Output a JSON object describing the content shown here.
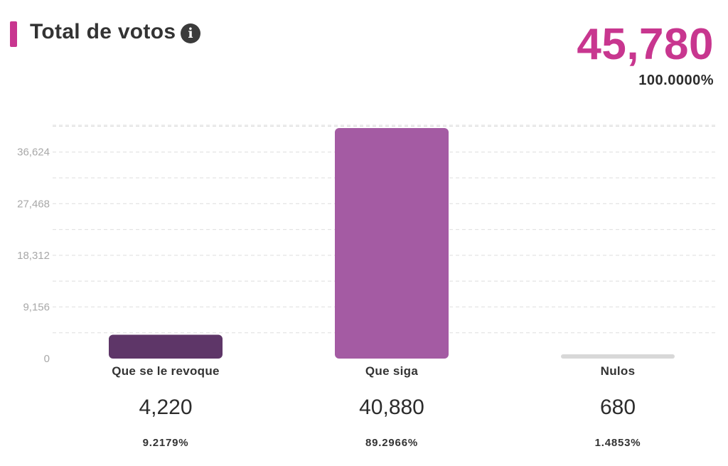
{
  "header": {
    "title": "Total de votos",
    "info_icon": "info-icon",
    "accent_color": "#c8368f",
    "total_value": "45,780",
    "total_percent": "100.0000%"
  },
  "chart_data": {
    "type": "bar",
    "categories": [
      "Que se le revoque",
      "Que siga",
      "Nulos"
    ],
    "values": [
      4220,
      40880,
      680
    ],
    "value_labels": [
      "4,220",
      "40,880",
      "680"
    ],
    "percent_labels": [
      "9.2179%",
      "89.2966%",
      "1.4853%"
    ],
    "colors": [
      "#5e3668",
      "#a45ba3",
      "#d8d8d8"
    ],
    "yticks": [
      0,
      9156,
      18312,
      27468,
      36624
    ],
    "ytick_labels": [
      "0",
      "9,156",
      "18,312",
      "27,468",
      "36,624"
    ],
    "ylim": [
      0,
      40880
    ],
    "grid": true
  }
}
